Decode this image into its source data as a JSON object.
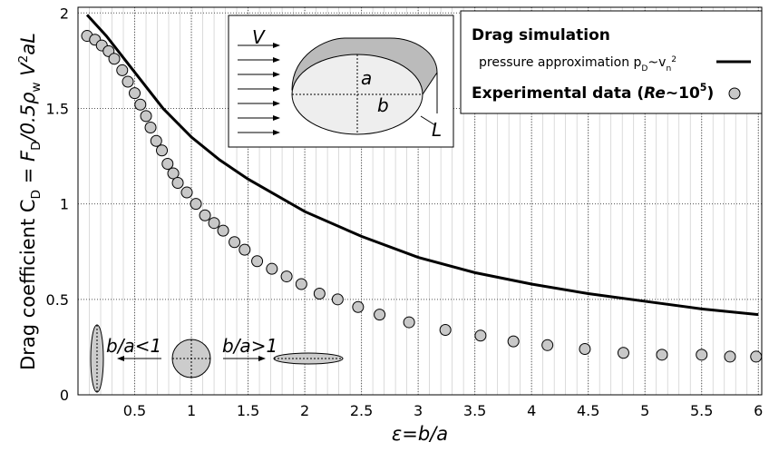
{
  "chart_data": {
    "type": "line",
    "y_label_parts": [
      "Drag coefficient  C",
      "D",
      " = F",
      "D",
      "/0.5ρ",
      "w",
      " V",
      "2",
      "aL"
    ],
    "x_label": "ε=b/a",
    "xlim": [
      0,
      6.03
    ],
    "ylim": [
      0,
      2.03
    ],
    "xticks": [
      0.5,
      1,
      1.5,
      2,
      2.5,
      3,
      3.5,
      4,
      4.5,
      5,
      5.5,
      6
    ],
    "yticks": [
      0,
      0.5,
      1,
      1.5,
      2
    ],
    "grid": true,
    "series": [
      {
        "name": "Drag simulation",
        "color": "#000000",
        "style": "line",
        "x": [
          0.08,
          0.25,
          0.5,
          0.75,
          1,
          1.25,
          1.5,
          2,
          2.5,
          3,
          3.5,
          4,
          4.5,
          5,
          5.5,
          6
        ],
        "values": [
          1.99,
          1.88,
          1.69,
          1.5,
          1.35,
          1.23,
          1.13,
          0.96,
          0.83,
          0.72,
          0.64,
          0.58,
          0.53,
          0.49,
          0.45,
          0.42
        ]
      },
      {
        "name": "Experimental data",
        "color": "#c8c8c8",
        "style": "marker",
        "x": [
          0.08,
          0.15,
          0.21,
          0.27,
          0.32,
          0.39,
          0.44,
          0.5,
          0.55,
          0.6,
          0.64,
          0.69,
          0.74,
          0.79,
          0.84,
          0.88,
          0.96,
          1.04,
          1.12,
          1.2,
          1.28,
          1.38,
          1.47,
          1.58,
          1.71,
          1.84,
          1.97,
          2.13,
          2.29,
          2.47,
          2.66,
          2.92,
          3.24,
          3.55,
          3.84,
          4.14,
          4.47,
          4.81,
          5.15,
          5.5,
          5.75,
          5.98
        ],
        "values": [
          1.88,
          1.86,
          1.83,
          1.8,
          1.76,
          1.7,
          1.64,
          1.58,
          1.52,
          1.46,
          1.4,
          1.33,
          1.28,
          1.21,
          1.16,
          1.11,
          1.06,
          1.0,
          0.94,
          0.9,
          0.86,
          0.8,
          0.76,
          0.7,
          0.66,
          0.62,
          0.58,
          0.53,
          0.5,
          0.46,
          0.42,
          0.38,
          0.34,
          0.31,
          0.28,
          0.26,
          0.24,
          0.22,
          0.21,
          0.21,
          0.2,
          0.2
        ]
      }
    ],
    "legend_note_parts": [
      "pressure approximation p",
      "D",
      "~v",
      "n",
      "2"
    ],
    "legend_exp_parts": [
      "Experimental data (",
      "Re",
      "~10",
      "5",
      ")"
    ],
    "inset_labels": {
      "V": "V",
      "a": "a",
      "b": "b",
      "L": "L"
    },
    "shape_labels": [
      "b/a<1",
      "b/a>1"
    ]
  }
}
